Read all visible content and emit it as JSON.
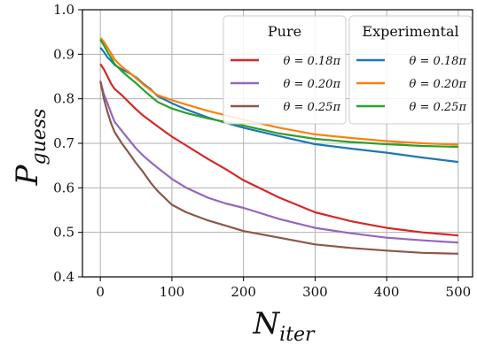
{
  "chart_data": {
    "type": "line",
    "xlabel": "N",
    "xlabel_sub": "iter",
    "ylabel": "P",
    "ylabel_sub": "guess",
    "xlim": [
      -25,
      520
    ],
    "ylim": [
      0.4,
      1.0
    ],
    "xticks": [
      0,
      100,
      200,
      300,
      400,
      500
    ],
    "yticks": [
      0.4,
      0.5,
      0.6,
      0.7,
      0.8,
      0.9,
      1.0
    ],
    "xtick_labels": [
      "0",
      "100",
      "200",
      "300",
      "400",
      "500"
    ],
    "ytick_labels": [
      "0.4",
      "0.5",
      "0.6",
      "0.7",
      "0.8",
      "0.9",
      "1.0"
    ],
    "grid": true,
    "legend": {
      "placement": "top-right",
      "groups": [
        {
          "title": "Pure",
          "entries": [
            0,
            1,
            2
          ]
        },
        {
          "title": "Experimental",
          "entries": [
            3,
            4,
            5
          ]
        }
      ]
    },
    "series": [
      {
        "name": "θ = 0.18π",
        "group": "Pure",
        "color": "#d62728",
        "x": [
          0,
          5,
          10,
          15,
          20,
          30,
          40,
          50,
          60,
          70,
          80,
          100,
          120,
          150,
          175,
          200,
          250,
          300,
          350,
          400,
          450,
          500
        ],
        "y": [
          0.878,
          0.866,
          0.85,
          0.834,
          0.822,
          0.808,
          0.792,
          0.776,
          0.762,
          0.75,
          0.738,
          0.715,
          0.695,
          0.665,
          0.642,
          0.617,
          0.578,
          0.545,
          0.525,
          0.51,
          0.5,
          0.493
        ]
      },
      {
        "name": "θ = 0.20π",
        "group": "Pure",
        "color": "#9467bd",
        "x": [
          0,
          5,
          10,
          15,
          20,
          30,
          40,
          50,
          60,
          70,
          80,
          100,
          120,
          150,
          175,
          200,
          250,
          300,
          350,
          400,
          450,
          500
        ],
        "y": [
          0.84,
          0.81,
          0.79,
          0.768,
          0.748,
          0.728,
          0.708,
          0.688,
          0.672,
          0.658,
          0.645,
          0.62,
          0.6,
          0.578,
          0.565,
          0.555,
          0.53,
          0.51,
          0.498,
          0.488,
          0.482,
          0.477
        ]
      },
      {
        "name": "θ = 0.25π",
        "group": "Pure",
        "color": "#8c564b",
        "x": [
          0,
          5,
          10,
          15,
          20,
          30,
          40,
          50,
          60,
          70,
          80,
          100,
          120,
          150,
          175,
          200,
          250,
          300,
          350,
          400,
          450,
          500
        ],
        "y": [
          0.84,
          0.8,
          0.77,
          0.745,
          0.725,
          0.7,
          0.678,
          0.655,
          0.635,
          0.612,
          0.593,
          0.562,
          0.545,
          0.527,
          0.515,
          0.503,
          0.488,
          0.473,
          0.465,
          0.459,
          0.454,
          0.452
        ]
      },
      {
        "name": "θ = 0.18π",
        "group": "Experimental",
        "color": "#1f77b4",
        "x": [
          0,
          5,
          10,
          15,
          20,
          30,
          40,
          50,
          60,
          70,
          80,
          100,
          120,
          150,
          175,
          200,
          250,
          300,
          350,
          400,
          450,
          500
        ],
        "y": [
          0.915,
          0.905,
          0.893,
          0.885,
          0.876,
          0.866,
          0.858,
          0.848,
          0.834,
          0.822,
          0.806,
          0.79,
          0.776,
          0.758,
          0.746,
          0.735,
          0.716,
          0.698,
          0.688,
          0.679,
          0.668,
          0.658
        ]
      },
      {
        "name": "θ = 0.20π",
        "group": "Experimental",
        "color": "#ff7f0e",
        "x": [
          0,
          5,
          10,
          15,
          20,
          30,
          40,
          50,
          60,
          70,
          80,
          100,
          120,
          150,
          175,
          200,
          250,
          300,
          350,
          400,
          450,
          500
        ],
        "y": [
          0.937,
          0.928,
          0.915,
          0.902,
          0.888,
          0.872,
          0.86,
          0.846,
          0.832,
          0.82,
          0.808,
          0.797,
          0.787,
          0.773,
          0.763,
          0.753,
          0.735,
          0.72,
          0.712,
          0.705,
          0.7,
          0.697
        ]
      },
      {
        "name": "θ = 0.25π",
        "group": "Experimental",
        "color": "#2ca02c",
        "x": [
          0,
          5,
          10,
          15,
          20,
          30,
          40,
          50,
          60,
          70,
          80,
          100,
          120,
          150,
          175,
          200,
          250,
          300,
          350,
          400,
          450,
          500
        ],
        "y": [
          0.933,
          0.92,
          0.905,
          0.892,
          0.878,
          0.862,
          0.848,
          0.835,
          0.82,
          0.806,
          0.793,
          0.778,
          0.768,
          0.756,
          0.748,
          0.74,
          0.722,
          0.71,
          0.703,
          0.698,
          0.694,
          0.692
        ]
      }
    ]
  }
}
